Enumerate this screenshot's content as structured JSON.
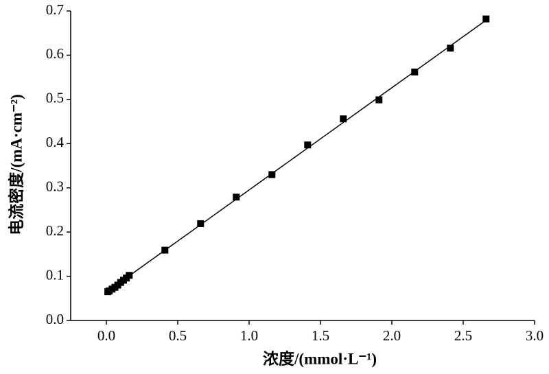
{
  "chart_data": {
    "type": "scatter",
    "x_label": "浓度/(mmol·L⁻¹)",
    "y_label": "电流密度/(mA·cm⁻²)",
    "series": [
      {
        "color": "#000000",
        "x": [
          0.01,
          0.02,
          0.04,
          0.06,
          0.08,
          0.1,
          0.12,
          0.14,
          0.16,
          0.41,
          0.66,
          0.91,
          1.16,
          1.41,
          1.66,
          1.91,
          2.16,
          2.41,
          2.66
        ],
        "values": [
          0.065,
          0.067,
          0.071,
          0.075,
          0.08,
          0.086,
          0.091,
          0.096,
          0.102,
          0.159,
          0.219,
          0.279,
          0.33,
          0.397,
          0.456,
          0.499,
          0.562,
          0.616,
          0.682
        ]
      }
    ],
    "fit_line": {
      "color": "#000000",
      "x": [
        0.0,
        2.66
      ],
      "values": [
        0.064,
        0.679
      ]
    },
    "xlim": [
      -0.25,
      3.0
    ],
    "xticks": [
      {
        "value": 0,
        "label": "0.0"
      },
      0.5,
      {
        "value": 1,
        "label": "1.0"
      },
      1.5,
      {
        "value": 2,
        "label": "2.0"
      },
      2.5,
      {
        "value": 3,
        "label": "3.0"
      }
    ],
    "ylim": [
      0,
      0.7
    ],
    "yticks": [
      {
        "value": 0,
        "label": "0.0"
      },
      0.1,
      0.2,
      0.3,
      0.4,
      0.5,
      0.6,
      0.7
    ]
  }
}
